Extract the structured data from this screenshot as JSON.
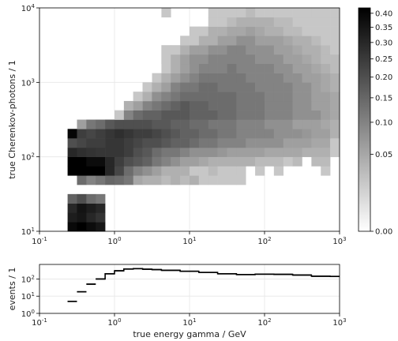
{
  "chart_data": [
    {
      "type": "heatmap",
      "xscale": "log",
      "yscale": "log",
      "xlim": [
        0.1,
        1000
      ],
      "ylim": [
        10,
        10000
      ],
      "ylabel": "true Cherenkov-photons / 1",
      "xticks": [
        {
          "v": 0.1,
          "base": "10",
          "exp": "-1"
        },
        {
          "v": 1,
          "base": "10",
          "exp": "0"
        },
        {
          "v": 10,
          "base": "10",
          "exp": "1"
        },
        {
          "v": 100,
          "base": "10",
          "exp": "2"
        },
        {
          "v": 1000,
          "base": "10",
          "exp": "3"
        }
      ],
      "yticks": [
        {
          "v": 10,
          "base": "10",
          "exp": "1"
        },
        {
          "v": 100,
          "base": "10",
          "exp": "2"
        },
        {
          "v": 1000,
          "base": "10",
          "exp": "3"
        },
        {
          "v": 10000,
          "base": "10",
          "exp": "4"
        }
      ],
      "grid": true,
      "bins_per_decade": 8,
      "colorbar": {
        "colormap": "gray_r",
        "range": [
          0,
          0.42
        ],
        "scale": "sqrt",
        "tick_values": [
          0,
          0.05,
          0.1,
          0.15,
          0.2,
          0.25,
          0.3,
          0.35,
          0.4
        ],
        "tick_labels": [
          "0.00",
          "0.05",
          "0.10",
          "0.15",
          "0.20",
          "0.25",
          "0.30",
          "0.35",
          "0.40"
        ]
      },
      "rows": [
        {
          "y": [
            10,
            13.3
          ],
          "x": [
            0.237,
            0.75
          ],
          "values": [
            0.39,
            0.42,
            0.38,
            0.35
          ]
        },
        {
          "y": [
            13.3,
            17.8
          ],
          "x": [
            0.237,
            0.75
          ],
          "values": [
            0.33,
            0.35,
            0.3,
            0.27
          ]
        },
        {
          "y": [
            17.8,
            23.7
          ],
          "x": [
            0.237,
            0.75
          ],
          "values": [
            0.3,
            0.36,
            0.33,
            0.3
          ]
        },
        {
          "y": [
            23.7,
            31.6
          ],
          "x": [
            0.237,
            0.75
          ],
          "values": [
            0.16,
            0.2,
            0.14,
            0.12
          ]
        },
        {
          "y": [
            31.6,
            42.2
          ],
          "x": [
            0.1,
            1000
          ],
          "values": [
            0.0,
            0.0,
            0.0,
            0.0,
            0.0,
            0.0,
            0.0,
            0.0,
            0.0,
            0.0,
            0.0,
            0.0,
            0.0,
            0.0,
            0.0,
            0.0,
            0.0,
            0.0,
            0.0,
            0.0,
            0.0,
            0.0,
            0.0,
            0.0
          ]
        },
        {
          "y": [
            42.2,
            56.2
          ],
          "x": [
            0.316,
            1000
          ],
          "values": [
            0.14,
            0.1,
            0.12,
            0.15,
            0.14,
            0.12,
            0.05,
            0.04,
            0.04,
            0.03,
            0.04,
            0.03,
            0.04,
            0.02,
            0.02,
            0.02,
            0.02,
            0.02,
            0.0,
            0.0,
            0.0,
            0.0
          ]
        },
        {
          "y": [
            56.2,
            75
          ],
          "x": [
            0.237,
            1000
          ],
          "values": [
            0.42,
            0.42,
            0.42,
            0.42,
            0.3,
            0.22,
            0.14,
            0.1,
            0.08,
            0.06,
            0.04,
            0.04,
            0.04,
            0.02,
            0.02,
            0.03,
            0.02,
            0.02,
            0.02,
            0.0,
            0.02,
            0.0,
            0.02,
            0.0,
            0.0,
            0.0,
            0.0,
            0.02,
            0.0
          ]
        },
        {
          "y": [
            75,
            100
          ],
          "x": [
            0.237,
            1000
          ],
          "values": [
            0.42,
            0.42,
            0.38,
            0.38,
            0.3,
            0.24,
            0.2,
            0.18,
            0.16,
            0.12,
            0.1,
            0.08,
            0.06,
            0.06,
            0.05,
            0.04,
            0.04,
            0.04,
            0.04,
            0.04,
            0.03,
            0.03,
            0.03,
            0.02,
            0.03,
            0.0,
            0.03,
            0.03,
            0.0
          ]
        },
        {
          "y": [
            100,
            133
          ],
          "x": [
            0.237,
            1000
          ],
          "values": [
            0.3,
            0.28,
            0.27,
            0.26,
            0.26,
            0.26,
            0.24,
            0.2,
            0.18,
            0.14,
            0.12,
            0.12,
            0.1,
            0.08,
            0.08,
            0.08,
            0.07,
            0.06,
            0.06,
            0.06,
            0.06,
            0.05,
            0.05,
            0.05,
            0.05,
            0.04,
            0.04,
            0.04,
            0.02
          ]
        },
        {
          "y": [
            133,
            178
          ],
          "x": [
            0.237,
            1000
          ],
          "values": [
            0.2,
            0.22,
            0.24,
            0.24,
            0.26,
            0.26,
            0.24,
            0.22,
            0.2,
            0.2,
            0.18,
            0.16,
            0.16,
            0.14,
            0.12,
            0.12,
            0.1,
            0.1,
            0.1,
            0.08,
            0.08,
            0.08,
            0.08,
            0.06,
            0.06,
            0.06,
            0.05,
            0.05,
            0.02
          ]
        },
        {
          "y": [
            178,
            237
          ],
          "x": [
            0.237,
            1000
          ],
          "values": [
            0.4,
            0.24,
            0.22,
            0.24,
            0.26,
            0.28,
            0.26,
            0.24,
            0.24,
            0.22,
            0.2,
            0.18,
            0.16,
            0.16,
            0.14,
            0.14,
            0.12,
            0.12,
            0.1,
            0.1,
            0.1,
            0.1,
            0.08,
            0.08,
            0.08,
            0.07,
            0.06,
            0.06,
            0.04
          ]
        },
        {
          "y": [
            237,
            316
          ],
          "x": [
            0.316,
            1000
          ],
          "values": [
            0.06,
            0.12,
            0.14,
            0.18,
            0.2,
            0.2,
            0.2,
            0.2,
            0.18,
            0.18,
            0.16,
            0.16,
            0.14,
            0.14,
            0.12,
            0.12,
            0.12,
            0.1,
            0.1,
            0.1,
            0.08,
            0.08,
            0.08,
            0.06,
            0.06,
            0.06,
            0.05,
            0.04
          ]
        },
        {
          "y": [
            316,
            422
          ],
          "x": [
            1,
            1000
          ],
          "values": [
            0.02,
            0.1,
            0.14,
            0.16,
            0.16,
            0.18,
            0.18,
            0.18,
            0.16,
            0.16,
            0.16,
            0.14,
            0.14,
            0.12,
            0.12,
            0.12,
            0.1,
            0.1,
            0.1,
            0.08,
            0.08,
            0.08,
            0.06,
            0.05
          ]
        },
        {
          "y": [
            422,
            562
          ],
          "x": [
            1,
            1000
          ],
          "values": [
            0.0,
            0.04,
            0.06,
            0.1,
            0.12,
            0.14,
            0.16,
            0.18,
            0.16,
            0.16,
            0.14,
            0.14,
            0.14,
            0.12,
            0.12,
            0.12,
            0.1,
            0.1,
            0.1,
            0.08,
            0.08,
            0.06,
            0.06,
            0.05
          ]
        },
        {
          "y": [
            562,
            750
          ],
          "x": [
            1.33,
            1000
          ],
          "values": [
            0.0,
            0.02,
            0.04,
            0.08,
            0.1,
            0.12,
            0.14,
            0.14,
            0.14,
            0.14,
            0.14,
            0.14,
            0.12,
            0.12,
            0.12,
            0.1,
            0.1,
            0.1,
            0.08,
            0.08,
            0.06,
            0.06,
            0.05
          ]
        },
        {
          "y": [
            750,
            1000
          ],
          "x": [
            1.33,
            1000
          ],
          "values": [
            0.0,
            0.0,
            0.02,
            0.04,
            0.06,
            0.1,
            0.12,
            0.12,
            0.14,
            0.14,
            0.12,
            0.12,
            0.12,
            0.12,
            0.1,
            0.1,
            0.1,
            0.1,
            0.08,
            0.08,
            0.06,
            0.05,
            0.04
          ]
        },
        {
          "y": [
            1000,
            1330
          ],
          "x": [
            1.78,
            1000
          ],
          "values": [
            0.0,
            0.0,
            0.02,
            0.04,
            0.06,
            0.08,
            0.1,
            0.12,
            0.12,
            0.12,
            0.12,
            0.12,
            0.1,
            0.1,
            0.1,
            0.1,
            0.08,
            0.08,
            0.06,
            0.06,
            0.05,
            0.04
          ]
        },
        {
          "y": [
            1330,
            1780
          ],
          "x": [
            1.78,
            1000
          ],
          "values": [
            0.0,
            0.0,
            0.0,
            0.02,
            0.04,
            0.06,
            0.08,
            0.1,
            0.1,
            0.1,
            0.12,
            0.1,
            0.1,
            0.1,
            0.1,
            0.08,
            0.08,
            0.06,
            0.06,
            0.05,
            0.04,
            0.03
          ]
        },
        {
          "y": [
            1780,
            2370
          ],
          "x": [
            2.37,
            1000
          ],
          "values": [
            0.0,
            0.0,
            0.02,
            0.04,
            0.06,
            0.08,
            0.08,
            0.1,
            0.1,
            0.1,
            0.1,
            0.1,
            0.08,
            0.08,
            0.08,
            0.06,
            0.06,
            0.05,
            0.04,
            0.03,
            0.03
          ]
        },
        {
          "y": [
            2370,
            3160
          ],
          "x": [
            3.16,
            1000
          ],
          "values": [
            0.0,
            0.02,
            0.02,
            0.04,
            0.06,
            0.06,
            0.08,
            0.08,
            0.1,
            0.1,
            0.08,
            0.08,
            0.08,
            0.06,
            0.06,
            0.05,
            0.04,
            0.04,
            0.03,
            0.02
          ]
        },
        {
          "y": [
            3160,
            4220
          ],
          "x": [
            4.22,
            1000
          ],
          "values": [
            0.0,
            0.0,
            0.02,
            0.02,
            0.04,
            0.04,
            0.06,
            0.06,
            0.08,
            0.08,
            0.06,
            0.06,
            0.06,
            0.05,
            0.04,
            0.04,
            0.03,
            0.02,
            0.02
          ]
        },
        {
          "y": [
            4220,
            5620
          ],
          "x": [
            5.62,
            1000
          ],
          "values": [
            0.0,
            0.0,
            0.02,
            0.02,
            0.04,
            0.04,
            0.05,
            0.05,
            0.06,
            0.05,
            0.04,
            0.04,
            0.03,
            0.03,
            0.02,
            0.02,
            0.02,
            0.02
          ]
        },
        {
          "y": [
            5620,
            7500
          ],
          "x": [
            7.5,
            1000
          ],
          "values": [
            0.0,
            0.0,
            0.0,
            0.02,
            0.02,
            0.03,
            0.04,
            0.04,
            0.04,
            0.04,
            0.03,
            0.03,
            0.02,
            0.02,
            0.02,
            0.02,
            0.02
          ]
        },
        {
          "y": [
            7500,
            10000
          ],
          "x": [
            4.22,
            1000
          ],
          "values": [
            0.02,
            0.0,
            0.0,
            0.0,
            0.0,
            0.02,
            0.02,
            0.02,
            0.02,
            0.03,
            0.02,
            0.02,
            0.02,
            0.02,
            0.02,
            0.02,
            0.02,
            0.02,
            0.02
          ]
        }
      ]
    },
    {
      "type": "line",
      "drawstyle": "steps",
      "xscale": "log",
      "yscale": "log",
      "xlim": [
        0.1,
        1000
      ],
      "ylim": [
        1,
        700
      ],
      "xlabel": "true energy gamma / GeV",
      "ylabel": "events / 1",
      "xticks": [
        {
          "v": 0.1,
          "base": "10",
          "exp": "-1"
        },
        {
          "v": 1,
          "base": "10",
          "exp": "0"
        },
        {
          "v": 10,
          "base": "10",
          "exp": "1"
        },
        {
          "v": 100,
          "base": "10",
          "exp": "2"
        },
        {
          "v": 1000,
          "base": "10",
          "exp": "3"
        }
      ],
      "yticks": [
        {
          "v": 1,
          "base": "10",
          "exp": "0"
        },
        {
          "v": 10,
          "base": "10",
          "exp": "1"
        },
        {
          "v": 100,
          "base": "10",
          "exp": "2"
        }
      ],
      "grid": true,
      "bins": [
        {
          "x": [
            0.237,
            0.316
          ],
          "y": 5
        },
        {
          "x": [
            0.316,
            0.422
          ],
          "y": 18
        },
        {
          "x": [
            0.422,
            0.562
          ],
          "y": 50
        },
        {
          "x": [
            0.562,
            0.75
          ],
          "y": 100
        },
        {
          "x": [
            0.75,
            1.0
          ],
          "y": 200
        },
        {
          "x": [
            1.0,
            1.33
          ],
          "y": 300
        },
        {
          "x": [
            1.33,
            1.78
          ],
          "y": 380
        },
        {
          "x": [
            1.78,
            2.37
          ],
          "y": 400
        },
        {
          "x": [
            2.37,
            3.16
          ],
          "y": 370
        },
        {
          "x": [
            3.16,
            4.22
          ],
          "y": 350
        },
        {
          "x": [
            4.22,
            7.5
          ],
          "y": 320
        },
        {
          "x": [
            7.5,
            13.3
          ],
          "y": 280
        },
        {
          "x": [
            13.3,
            23.7
          ],
          "y": 240
        },
        {
          "x": [
            23.7,
            42.2
          ],
          "y": 200
        },
        {
          "x": [
            42.2,
            75
          ],
          "y": 180
        },
        {
          "x": [
            75,
            133
          ],
          "y": 190
        },
        {
          "x": [
            133,
            237
          ],
          "y": 185
        },
        {
          "x": [
            237,
            422
          ],
          "y": 170
        },
        {
          "x": [
            422,
            750
          ],
          "y": 145
        },
        {
          "x": [
            750,
            1000
          ],
          "y": 140
        }
      ]
    }
  ]
}
